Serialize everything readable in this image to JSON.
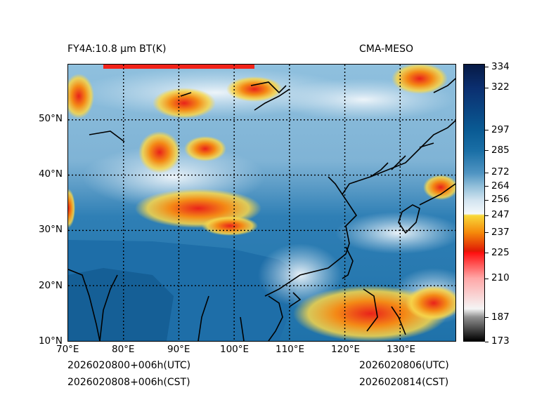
{
  "title_left": "FY4A:10.8 µm BT(K)",
  "title_right": "CMA-MESO",
  "footer": {
    "init_utc": "2026020800+006h(UTC)",
    "init_cst": "2026020808+006h(CST)",
    "valid_utc": "2026020806(UTC)",
    "valid_cst": "2026020814(CST)"
  },
  "map": {
    "lon_range": [
      70,
      140
    ],
    "lat_range": [
      10,
      60
    ],
    "lon_ticks": [
      70,
      80,
      90,
      100,
      110,
      120,
      130
    ],
    "lon_labels": [
      "70°E",
      "80°E",
      "90°E",
      "100°E",
      "110°E",
      "120°E",
      "130°E"
    ],
    "lat_ticks": [
      10,
      20,
      30,
      40,
      50
    ],
    "lat_labels": [
      "10°N",
      "20°N",
      "30°N",
      "40°N",
      "50°N"
    ]
  },
  "colorbar": {
    "range": [
      173,
      336
    ],
    "tick_values": [
      334,
      322,
      297,
      285,
      272,
      264,
      256,
      247,
      237,
      225,
      210,
      187,
      173
    ],
    "tick_labels": [
      "334",
      "322",
      "297",
      "285",
      "272",
      "264",
      "256",
      "247",
      "237",
      "225",
      "210",
      "187",
      "173"
    ],
    "stops": [
      {
        "value": 173,
        "color": "#000000"
      },
      {
        "value": 187,
        "color": "#8f8f8f"
      },
      {
        "value": 192,
        "color": "#f5f5f5"
      },
      {
        "value": 210,
        "color": "#ffa7a7"
      },
      {
        "value": 225,
        "color": "#ff1010"
      },
      {
        "value": 226,
        "color": "#e01a05"
      },
      {
        "value": 237,
        "color": "#f58a0a"
      },
      {
        "value": 247,
        "color": "#f8d93a"
      },
      {
        "value": 248,
        "color": "#f4f8fb"
      },
      {
        "value": 256,
        "color": "#d2e4f0"
      },
      {
        "value": 264,
        "color": "#93c0da"
      },
      {
        "value": 272,
        "color": "#4f94c2"
      },
      {
        "value": 285,
        "color": "#1a6fa6"
      },
      {
        "value": 297,
        "color": "#0a5b94"
      },
      {
        "value": 322,
        "color": "#0b2f70"
      },
      {
        "value": 336,
        "color": "#071a45"
      }
    ]
  }
}
